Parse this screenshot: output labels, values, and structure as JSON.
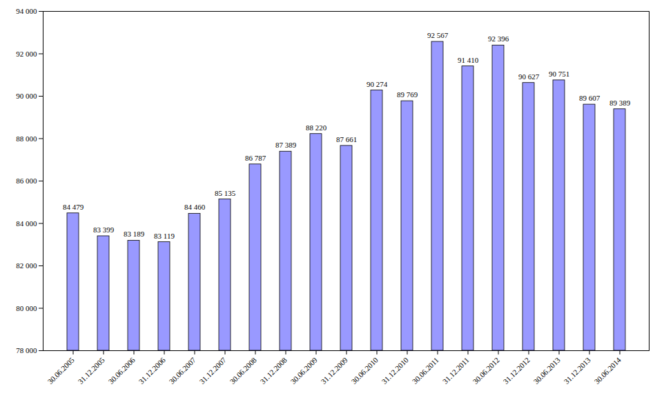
{
  "chart_data": {
    "type": "bar",
    "categories": [
      "30.06.2005",
      "31.12.2005",
      "30.06.2006",
      "31.12.2006",
      "30.06.2007",
      "31.12.2007",
      "30.06.2008",
      "31.12.2008",
      "30.06.2009",
      "31.12.2009",
      "30.06.2010",
      "31.12.2010",
      "30.06.2011",
      "31.12.2011",
      "30.06.2012",
      "31.12.2012",
      "30.06.2013",
      "31.12.2013",
      "30.06.2014"
    ],
    "values": [
      84479,
      83399,
      83189,
      83119,
      84460,
      85135,
      86787,
      87389,
      88220,
      87661,
      90274,
      89769,
      92567,
      91410,
      92396,
      90627,
      90751,
      89607,
      89389
    ],
    "value_labels": [
      "84 479",
      "83 399",
      "83 189",
      "83 119",
      "84 460",
      "85 135",
      "86 787",
      "87 389",
      "88 220",
      "87 661",
      "90 274",
      "89 769",
      "92 567",
      "91 410",
      "92 396",
      "90 627",
      "90 751",
      "89 607",
      "89 389"
    ],
    "data_labels": true,
    "color": "#9999ff",
    "grid": false,
    "ylim": [
      78000,
      94000
    ],
    "yticks": [
      {
        "value": 78000,
        "label": "78 000"
      },
      {
        "value": 80000,
        "label": "80 000"
      },
      {
        "value": 82000,
        "label": "82 000"
      },
      {
        "value": 84000,
        "label": "84 000"
      },
      {
        "value": 86000,
        "label": "86 000"
      },
      {
        "value": 88000,
        "label": "88 000"
      },
      {
        "value": 90000,
        "label": "90 000"
      },
      {
        "value": 92000,
        "label": "92 000"
      },
      {
        "value": 94000,
        "label": "94 000"
      }
    ]
  }
}
